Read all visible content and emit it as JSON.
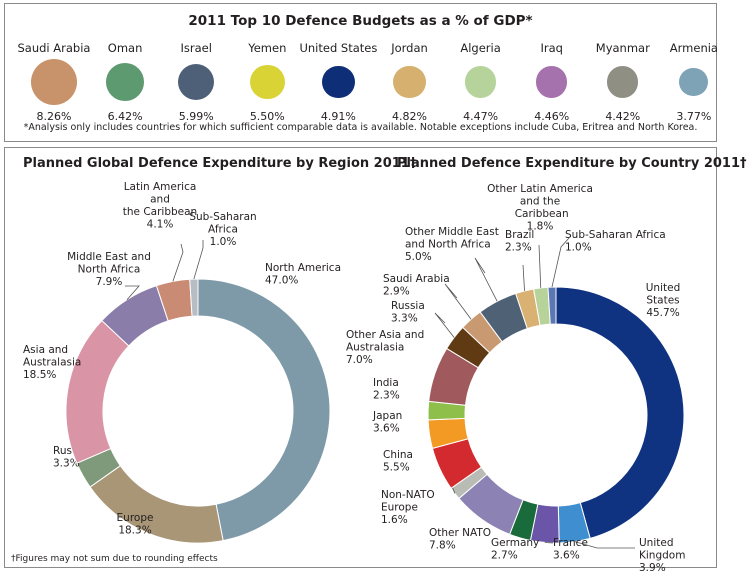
{
  "top": {
    "title": "2011 Top 10 Defence Budgets as a % of GDP*",
    "countries": [
      {
        "name": "Saudi Arabia",
        "value": "8.26%",
        "color": "#c8936a"
      },
      {
        "name": "Oman",
        "value": "6.42%",
        "color": "#5e9a70"
      },
      {
        "name": "Israel",
        "value": "5.99%",
        "color": "#4e6077"
      },
      {
        "name": "Yemen",
        "value": "5.50%",
        "color": "#d9d336"
      },
      {
        "name": "United States",
        "value": "4.91%",
        "color": "#0e2f78"
      },
      {
        "name": "Jordan",
        "value": "4.82%",
        "color": "#d6b06e"
      },
      {
        "name": "Algeria",
        "value": "4.47%",
        "color": "#b5d39a"
      },
      {
        "name": "Iraq",
        "value": "4.46%",
        "color": "#a672ad"
      },
      {
        "name": "Myanmar",
        "value": "4.42%",
        "color": "#8f8f84"
      },
      {
        "name": "Armenia",
        "value": "3.77%",
        "color": "#7ea3b6"
      }
    ],
    "footnote": "*Analysis only includes countries for which sufficient comparable data is available. Notable exceptions include Cuba, Eritrea and North Korea."
  },
  "bottom": {
    "rounding_note": "†Figures may not sum due to rounding effects"
  },
  "chart_data": [
    {
      "type": "pie",
      "title": "Planned Global Defence Expenditure by Region 2011†",
      "slices": [
        {
          "label": "North America",
          "value": 47.0,
          "display": "47.0%",
          "color": "#7e9aa8"
        },
        {
          "label": "Europe",
          "value": 18.3,
          "display": "18.3%",
          "color": "#a89677"
        },
        {
          "label": "Russia",
          "value": 3.3,
          "display": "3.3%",
          "color": "#7f9a7b"
        },
        {
          "label": "Asia and Australasia",
          "value": 18.5,
          "display": "18.5%",
          "color": "#d994a5"
        },
        {
          "label": "Middle East and North Africa",
          "value": 7.9,
          "display": "7.9%",
          "color": "#8a7daa"
        },
        {
          "label": "Latin America and the Caribbean",
          "value": 4.1,
          "display": "4.1%",
          "color": "#c98b73"
        },
        {
          "label": "Sub-Saharan Africa",
          "value": 1.0,
          "display": "1.0%",
          "color": "#b8bcc4"
        }
      ]
    },
    {
      "type": "pie",
      "title": "Planned Defence Expenditure by Country 2011†",
      "slices": [
        {
          "label": "United States",
          "value": 45.7,
          "display": "45.7%",
          "color": "#0f3381"
        },
        {
          "label": "United Kingdom",
          "value": 3.9,
          "display": "3.9%",
          "color": "#3f8fd0"
        },
        {
          "label": "France",
          "value": 3.6,
          "display": "3.6%",
          "color": "#6b55a8"
        },
        {
          "label": "Germany",
          "value": 2.7,
          "display": "2.7%",
          "color": "#1a6b3b"
        },
        {
          "label": "Other NATO",
          "value": 7.8,
          "display": "7.8%",
          "color": "#8c82b4"
        },
        {
          "label": "Non-NATO Europe",
          "value": 1.6,
          "display": "1.6%",
          "color": "#b9bcb5"
        },
        {
          "label": "China",
          "value": 5.5,
          "display": "5.5%",
          "color": "#d22a2e"
        },
        {
          "label": "Japan",
          "value": 3.6,
          "display": "3.6%",
          "color": "#f39a24"
        },
        {
          "label": "India",
          "value": 2.3,
          "display": "2.3%",
          "color": "#8fbf4b"
        },
        {
          "label": "Other Asia and Australasia",
          "value": 7.0,
          "display": "7.0%",
          "color": "#a05a5d"
        },
        {
          "label": "Russia",
          "value": 3.3,
          "display": "3.3%",
          "color": "#603a12"
        },
        {
          "label": "Saudi Arabia",
          "value": 2.9,
          "display": "2.9%",
          "color": "#c99a72"
        },
        {
          "label": "Other Middle East and North Africa",
          "value": 5.0,
          "display": "5.0%",
          "color": "#4e6175"
        },
        {
          "label": "Brazil",
          "value": 2.3,
          "display": "2.3%",
          "color": "#d8b173"
        },
        {
          "label": "Other Latin America and the Caribbean",
          "value": 1.8,
          "display": "1.8%",
          "color": "#b7d39a"
        },
        {
          "label": "Sub-Saharan Africa",
          "value": 1.0,
          "display": "1.0%",
          "color": "#5b77b4"
        }
      ]
    }
  ]
}
